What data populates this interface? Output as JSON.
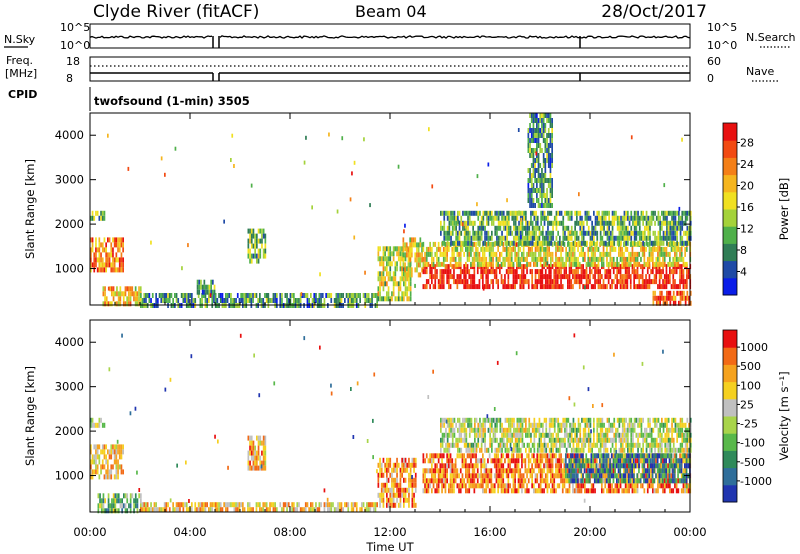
{
  "header": {
    "station": "Clyde River (fitACF)",
    "beam": "Beam 04",
    "date": "28/Oct/2017"
  },
  "strips": {
    "nsky": {
      "label": "N.Sky",
      "ticks": [
        "10^5",
        "10^0"
      ]
    },
    "nsearch": {
      "label": "N.Search",
      "ticks": [
        "10^5",
        "10^0"
      ]
    },
    "freq": {
      "label_top": "Freq.",
      "label_bottom": "[MHz]",
      "ticks": [
        "18",
        "8"
      ]
    },
    "nave": {
      "label": "Nave",
      "ticks": [
        "60",
        "0"
      ]
    },
    "cpid": {
      "label": "CPID",
      "value": "twofsound (1-min) 3505"
    }
  },
  "chart_data": [
    {
      "type": "heatmap",
      "panel": "power",
      "ylabel": "Slant Range [km]",
      "xlabel": "Time UT",
      "ylim": [
        180,
        4500
      ],
      "xlim": [
        0,
        24
      ],
      "yticks": [
        "1000",
        "2000",
        "3000",
        "4000"
      ],
      "xticks": [
        "00:00",
        "04:00",
        "08:00",
        "12:00",
        "16:00",
        "20:00",
        "00:00"
      ],
      "colorbar": {
        "label": "Power [dB]",
        "ticks": [
          "4",
          "8",
          "12",
          "16",
          "20",
          "24",
          "28"
        ],
        "colors": [
          "#0a1de8",
          "#1f4aa6",
          "#2f7d55",
          "#4fb04a",
          "#a4d23a",
          "#f0e020",
          "#f5b51e",
          "#f47f17",
          "#f24a12",
          "#e81010"
        ]
      },
      "regions": [
        {
          "t0": 0.0,
          "t1": 1.3,
          "r0": 1000,
          "r1": 1700,
          "level": 0.75
        },
        {
          "t0": 0.0,
          "t1": 0.6,
          "r0": 2100,
          "r1": 2300,
          "level": 0.35
        },
        {
          "t0": 0.5,
          "t1": 2.0,
          "r0": 200,
          "r1": 600,
          "level": 0.6
        },
        {
          "t0": 2.0,
          "t1": 11.5,
          "r0": 200,
          "r1": 450,
          "level": 0.3
        },
        {
          "t0": 4.2,
          "t1": 5.0,
          "r0": 450,
          "r1": 750,
          "level": 0.3
        },
        {
          "t0": 6.3,
          "t1": 7.0,
          "r0": 1200,
          "r1": 1900,
          "level": 0.4
        },
        {
          "t0": 11.5,
          "t1": 12.8,
          "r0": 300,
          "r1": 1500,
          "level": 0.5
        },
        {
          "t0": 12.5,
          "t1": 13.3,
          "r0": 800,
          "r1": 1700,
          "level": 0.55
        },
        {
          "t0": 13.3,
          "t1": 24.0,
          "r0": 600,
          "r1": 1100,
          "level": 0.93
        },
        {
          "t0": 13.3,
          "t1": 24.0,
          "r0": 1100,
          "r1": 1600,
          "level": 0.55
        },
        {
          "t0": 14.0,
          "t1": 24.0,
          "r0": 1600,
          "r1": 2300,
          "level": 0.35
        },
        {
          "t0": 17.5,
          "t1": 18.5,
          "r0": 2400,
          "r1": 4500,
          "level": 0.3
        },
        {
          "t0": 22.5,
          "t1": 24.0,
          "r0": 200,
          "r1": 500,
          "level": 0.8
        }
      ]
    },
    {
      "type": "heatmap",
      "panel": "velocity",
      "ylabel": "Slant Range [km]",
      "xlabel": "Time UT",
      "ylim": [
        180,
        4500
      ],
      "xlim": [
        0,
        24
      ],
      "yticks": [
        "1000",
        "2000",
        "3000",
        "4000"
      ],
      "xticks": [
        "00:00",
        "04:00",
        "08:00",
        "12:00",
        "16:00",
        "20:00",
        "00:00"
      ],
      "colorbar": {
        "label": "Velocity [m s⁻¹]",
        "ticks": [
          "1000",
          "500",
          "100",
          "25",
          "-25",
          "-100",
          "-500",
          "-1000"
        ],
        "colors": [
          "#2035b0",
          "#2f6e9a",
          "#2f8a5a",
          "#58b84a",
          "#a8d44a",
          "#c0c0c0",
          "#f5d020",
          "#f5a21e",
          "#f26a16",
          "#e81010"
        ]
      },
      "regions": [
        {
          "t0": 0.0,
          "t1": 1.3,
          "r0": 1000,
          "r1": 1700,
          "level": 0.65
        },
        {
          "t0": 0.0,
          "t1": 0.6,
          "r0": 2100,
          "r1": 2300,
          "level": 0.45
        },
        {
          "t0": 0.3,
          "t1": 2.0,
          "r0": 200,
          "r1": 600,
          "level": 0.4
        },
        {
          "t0": 2.0,
          "t1": 11.5,
          "r0": 180,
          "r1": 400,
          "level": 0.65
        },
        {
          "t0": 6.3,
          "t1": 7.0,
          "r0": 1200,
          "r1": 1900,
          "level": 0.7
        },
        {
          "t0": 11.5,
          "t1": 13.0,
          "r0": 300,
          "r1": 1400,
          "level": 0.75
        },
        {
          "t0": 13.3,
          "t1": 24.0,
          "r0": 600,
          "r1": 1500,
          "level": 0.8
        },
        {
          "t0": 19.0,
          "t1": 24.0,
          "r0": 900,
          "r1": 1500,
          "level": 0.2
        },
        {
          "t0": 14.0,
          "t1": 24.0,
          "r0": 1600,
          "r1": 2300,
          "level": 0.5
        }
      ]
    }
  ]
}
